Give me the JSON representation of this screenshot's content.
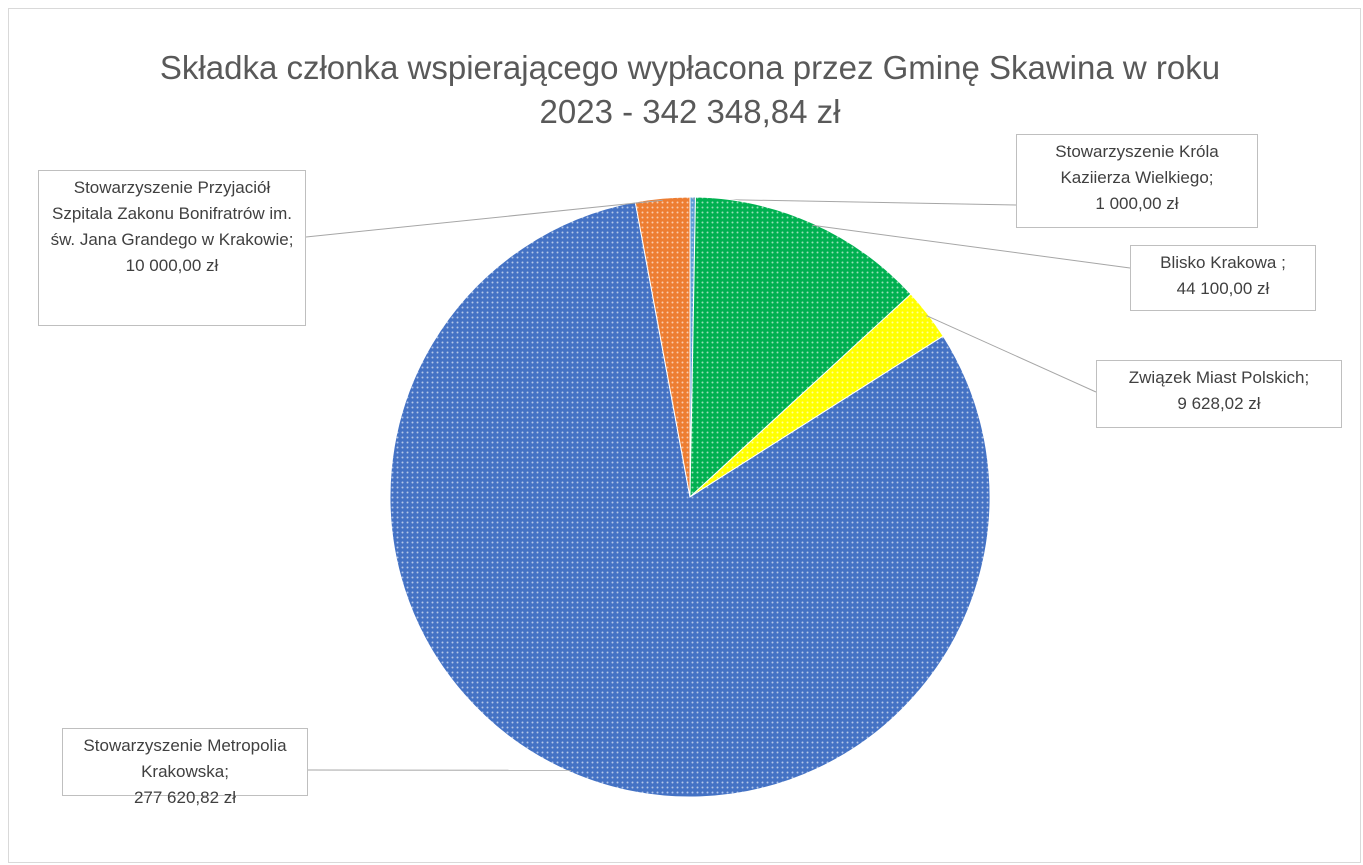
{
  "chart_data": {
    "type": "pie",
    "title": "Składka członka wspierającego wypłacona przez Gminę Skawina w roku 2023 - 342 348,84 zł",
    "categories": [
      "Stowarzyszenie Króla Kaziierza Wielkiego",
      "Blisko Krakowa ",
      "Związek Miast Polskich",
      "Stowarzyszenie Metropolia Krakowska",
      "Stowarzyszenie Przyjaciół Szpitala Zakonu Bonifratrów im. św. Jana Grandego w Krakowie"
    ],
    "values": [
      1000,
      44100,
      9628.02,
      277620.82,
      10000
    ],
    "value_labels": [
      "1 000,00 zł",
      "44 100,00 zł",
      "9 628,02 zł",
      "277 620,82 zł",
      "10 000,00 zł"
    ],
    "label_separator": ";",
    "colors": [
      "#5b9bd5",
      "#00b050",
      "#ffff00",
      "#4472c4",
      "#ed7d31"
    ]
  }
}
